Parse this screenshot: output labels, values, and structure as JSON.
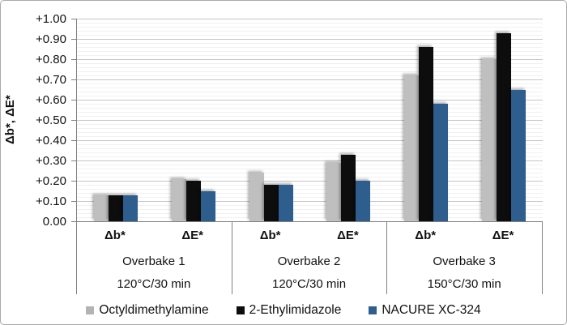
{
  "chart_data": {
    "type": "bar",
    "title": "",
    "ylabel": "Δb*, ΔE*",
    "ylim": [
      0,
      1.0
    ],
    "ytick_step": 0.1,
    "yminor_step": 0.02,
    "ytick_labels": [
      "0.00",
      "+0.10",
      "+0.20",
      "+0.30",
      "+0.40",
      "+0.50",
      "+0.60",
      "+0.70",
      "+0.80",
      "+0.90",
      "+1.00"
    ],
    "grid": "major-and-minor",
    "legend_position": "bottom",
    "groups": [
      {
        "name": "Overbake 1",
        "condition": "120°C/30 min",
        "subcategories": [
          "Δb*",
          "ΔE*"
        ]
      },
      {
        "name": "Overbake 2",
        "condition": "120°C/30 min",
        "subcategories": [
          "Δb*",
          "ΔE*"
        ]
      },
      {
        "name": "Overbake 3",
        "condition": "150°C/30 min",
        "subcategories": [
          "Δb*",
          "ΔE*"
        ]
      }
    ],
    "series": [
      {
        "name": "Octyldimethylamine",
        "color": "#bfbfbf",
        "values": [
          0.13,
          0.21,
          0.24,
          0.29,
          0.72,
          0.8
        ]
      },
      {
        "name": "2-Ethylimidazole",
        "color": "#0d0d0d",
        "values": [
          0.13,
          0.2,
          0.18,
          0.33,
          0.86,
          0.93
        ]
      },
      {
        "name": "NACURE XC-324",
        "color": "#2e5e8e",
        "values": [
          0.13,
          0.15,
          0.18,
          0.2,
          0.58,
          0.65
        ]
      }
    ],
    "colors": {
      "major_grid": "#c6c6c6",
      "minor_grid": "#f1f1f1",
      "axis": "#808080",
      "text": "#111111"
    }
  }
}
